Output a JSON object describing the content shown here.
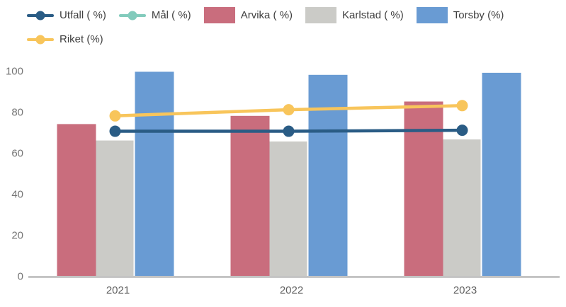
{
  "chart_data": {
    "type": "bar",
    "subtype": "grouped bars with line overlay",
    "title": "",
    "xlabel": "",
    "ylabel": "",
    "categories": [
      "2021",
      "2022",
      "2023"
    ],
    "series": [
      {
        "name": "Utfall ( %)",
        "kind": "line",
        "color": "#2a5c85",
        "values": [
          70.5,
          70.5,
          71
        ]
      },
      {
        "name": "Mål ( %)",
        "kind": "line",
        "color": "#82cbbc",
        "values": []
      },
      {
        "name": "Arvika ( %)",
        "kind": "bar",
        "color": "#c96d7d",
        "values": [
          74,
          78,
          85
        ]
      },
      {
        "name": "Karlstad ( %)",
        "kind": "bar",
        "color": "#cbcbc7",
        "values": [
          66,
          65.5,
          66.5
        ]
      },
      {
        "name": "Torsby (%)",
        "kind": "bar",
        "color": "#699bd3",
        "values": [
          99.5,
          98,
          99
        ]
      },
      {
        "name": "Riket (%)",
        "kind": "line",
        "color": "#f8c55b",
        "values": [
          78,
          81,
          83
        ]
      }
    ],
    "ylim": [
      0,
      100
    ],
    "yticks": [
      0,
      20,
      40,
      60,
      80,
      100
    ],
    "grid": false,
    "legend_position": "top-left",
    "colors": {
      "axis_line": "#b9b9b9",
      "y_tick_label": "#757575",
      "x_tick_label": "#616161",
      "legend_text": "#3f3f3f",
      "background": "#ffffff"
    }
  }
}
